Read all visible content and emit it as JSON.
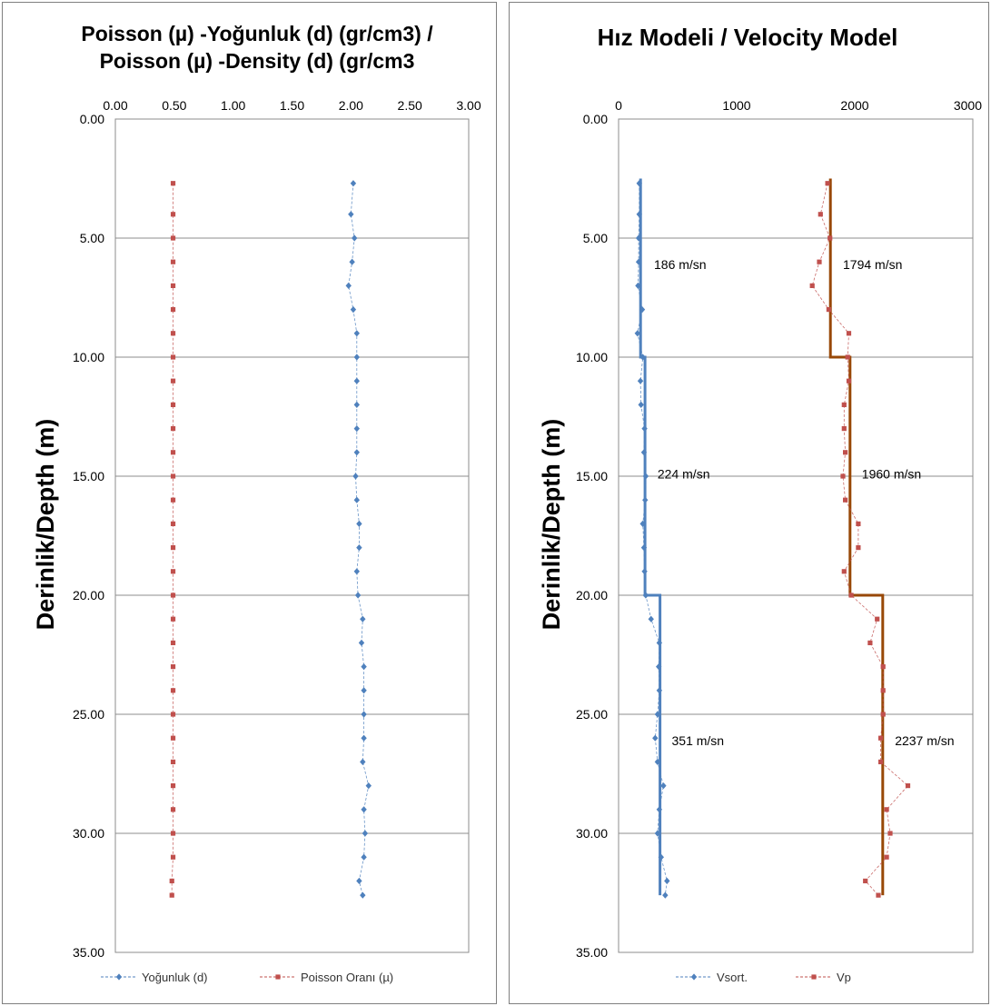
{
  "chart_data": [
    {
      "type": "line",
      "title_lines": [
        "Poisson (µ) -Yoğunluk (d) (gr/cm3)  /",
        "Poisson (µ) -Density (d) (gr/cm3"
      ],
      "ylabel": "Derinlik/Depth (m)",
      "xlim": [
        0,
        3
      ],
      "ylim": [
        0,
        35
      ],
      "x_ticks": [
        "0.00",
        "0.50",
        "1.00",
        "1.50",
        "2.00",
        "2.50",
        "3.00"
      ],
      "y_ticks": [
        "0.00",
        "5.00",
        "10.00",
        "15.00",
        "20.00",
        "25.00",
        "30.00",
        "35.00"
      ],
      "x_axis_position": "top",
      "y_axis_inverted": true,
      "grid": "horizontal",
      "legend_position": "bottom",
      "series": [
        {
          "name": "Yoğunluk (d)",
          "color": "#4f81bd",
          "marker": "diamond",
          "line_style": "dashed",
          "points": [
            [
              2.02,
              2.7
            ],
            [
              2.0,
              4
            ],
            [
              2.03,
              5
            ],
            [
              2.01,
              6
            ],
            [
              1.98,
              7
            ],
            [
              2.02,
              8
            ],
            [
              2.05,
              9
            ],
            [
              2.05,
              10
            ],
            [
              2.05,
              11
            ],
            [
              2.05,
              12
            ],
            [
              2.05,
              13
            ],
            [
              2.05,
              14
            ],
            [
              2.04,
              15
            ],
            [
              2.05,
              16
            ],
            [
              2.07,
              17
            ],
            [
              2.07,
              18
            ],
            [
              2.05,
              19
            ],
            [
              2.06,
              20
            ],
            [
              2.1,
              21
            ],
            [
              2.09,
              22
            ],
            [
              2.11,
              23
            ],
            [
              2.11,
              24
            ],
            [
              2.11,
              25
            ],
            [
              2.11,
              26
            ],
            [
              2.1,
              27
            ],
            [
              2.15,
              28
            ],
            [
              2.11,
              29
            ],
            [
              2.12,
              30
            ],
            [
              2.11,
              31
            ],
            [
              2.07,
              32
            ],
            [
              2.1,
              32.6
            ]
          ]
        },
        {
          "name": "Poisson Oranı  (µ)",
          "color": "#c0504d",
          "marker": "square",
          "line_style": "dashed",
          "points": [
            [
              0.49,
              2.7
            ],
            [
              0.49,
              4
            ],
            [
              0.49,
              5
            ],
            [
              0.49,
              6
            ],
            [
              0.49,
              7
            ],
            [
              0.49,
              8
            ],
            [
              0.49,
              9
            ],
            [
              0.49,
              10
            ],
            [
              0.49,
              11
            ],
            [
              0.49,
              12
            ],
            [
              0.49,
              13
            ],
            [
              0.49,
              14
            ],
            [
              0.49,
              15
            ],
            [
              0.49,
              16
            ],
            [
              0.49,
              17
            ],
            [
              0.49,
              18
            ],
            [
              0.49,
              19
            ],
            [
              0.49,
              20
            ],
            [
              0.49,
              21
            ],
            [
              0.49,
              22
            ],
            [
              0.49,
              23
            ],
            [
              0.49,
              24
            ],
            [
              0.49,
              25
            ],
            [
              0.49,
              26
            ],
            [
              0.49,
              27
            ],
            [
              0.49,
              28
            ],
            [
              0.49,
              29
            ],
            [
              0.49,
              30
            ],
            [
              0.49,
              31
            ],
            [
              0.48,
              32
            ],
            [
              0.48,
              32.6
            ]
          ]
        }
      ]
    },
    {
      "type": "line",
      "title": "Hız Modeli / Velocity Model",
      "ylabel": "Derinlik/Depth (m)",
      "xlim": [
        0,
        3000
      ],
      "ylim": [
        0,
        35
      ],
      "x_ticks": [
        "0",
        "1000",
        "2000",
        "3000"
      ],
      "y_ticks": [
        "0.00",
        "5.00",
        "10.00",
        "15.00",
        "20.00",
        "25.00",
        "30.00",
        "35.00"
      ],
      "x_axis_position": "top",
      "y_axis_inverted": true,
      "grid": "horizontal",
      "legend_position": "bottom",
      "series": [
        {
          "name": "Vsort.",
          "color": "#4f81bd",
          "marker": "diamond",
          "line_style": "dashed",
          "points": [
            [
              175,
              2.7
            ],
            [
              175,
              4
            ],
            [
              170,
              5
            ],
            [
              170,
              6
            ],
            [
              165,
              7
            ],
            [
              200,
              8
            ],
            [
              160,
              9
            ],
            [
              205,
              10
            ],
            [
              185,
              11
            ],
            [
              190,
              12
            ],
            [
              220,
              13
            ],
            [
              215,
              14
            ],
            [
              230,
              15
            ],
            [
              225,
              16
            ],
            [
              205,
              17
            ],
            [
              215,
              18
            ],
            [
              220,
              19
            ],
            [
              230,
              20
            ],
            [
              275,
              21
            ],
            [
              345,
              22
            ],
            [
              340,
              23
            ],
            [
              345,
              24
            ],
            [
              330,
              25
            ],
            [
              310,
              26
            ],
            [
              330,
              27
            ],
            [
              380,
              28
            ],
            [
              345,
              29
            ],
            [
              330,
              30
            ],
            [
              360,
              31
            ],
            [
              410,
              32
            ],
            [
              395,
              32.6
            ]
          ]
        },
        {
          "name": "Vp",
          "color": "#c0504d",
          "marker": "square",
          "line_style": "dashed",
          "points": [
            [
              1770,
              2.7
            ],
            [
              1710,
              4
            ],
            [
              1790,
              5
            ],
            [
              1700,
              6
            ],
            [
              1640,
              7
            ],
            [
              1780,
              8
            ],
            [
              1950,
              9
            ],
            [
              1940,
              10
            ],
            [
              1950,
              11
            ],
            [
              1910,
              12
            ],
            [
              1910,
              13
            ],
            [
              1920,
              14
            ],
            [
              1900,
              15
            ],
            [
              1920,
              16
            ],
            [
              2030,
              17
            ],
            [
              2030,
              18
            ],
            [
              1910,
              19
            ],
            [
              1970,
              20
            ],
            [
              2190,
              21
            ],
            [
              2130,
              22
            ],
            [
              2240,
              23
            ],
            [
              2240,
              24
            ],
            [
              2240,
              25
            ],
            [
              2220,
              26
            ],
            [
              2220,
              27
            ],
            [
              2450,
              28
            ],
            [
              2270,
              29
            ],
            [
              2300,
              30
            ],
            [
              2270,
              31
            ],
            [
              2090,
              32
            ],
            [
              2200,
              32.6
            ]
          ]
        },
        {
          "name": "Vs model",
          "show_in_legend": false,
          "color": "#4f81bd",
          "line_style": "solid",
          "step_points": [
            [
              186,
              2.5
            ],
            [
              186,
              10
            ],
            [
              224,
              10
            ],
            [
              224,
              20
            ],
            [
              351,
              20
            ],
            [
              351,
              32.6
            ]
          ]
        },
        {
          "name": "Vp model",
          "show_in_legend": false,
          "color": "#984807",
          "line_style": "solid",
          "step_points": [
            [
              1794,
              2.5
            ],
            [
              1794,
              10
            ],
            [
              1960,
              10
            ],
            [
              1960,
              20
            ],
            [
              2237,
              20
            ],
            [
              2237,
              32.6
            ]
          ]
        }
      ],
      "annotations": [
        {
          "text": "186 m/sn",
          "x": 300,
          "y": 6.3
        },
        {
          "text": "1794 m/sn",
          "x": 1900,
          "y": 6.3
        },
        {
          "text": "224 m/sn",
          "x": 330,
          "y": 15.1
        },
        {
          "text": "1960 m/sn",
          "x": 2060,
          "y": 15.1
        },
        {
          "text": "351 m/sn",
          "x": 450,
          "y": 26.3
        },
        {
          "text": "2237 m/sn",
          "x": 2340,
          "y": 26.3
        }
      ]
    }
  ]
}
